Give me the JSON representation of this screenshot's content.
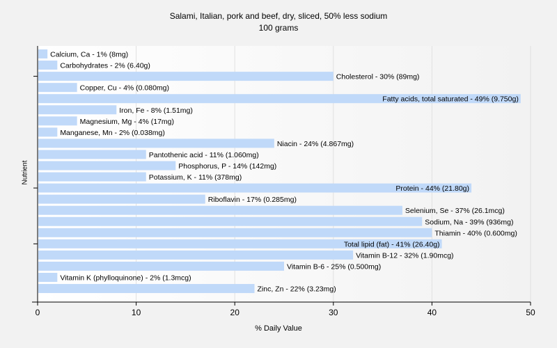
{
  "chart_data": {
    "type": "bar",
    "orientation": "horizontal",
    "title": "Salami, Italian, pork and beef, dry, sliced, 50% less sodium",
    "subtitle": "100 grams",
    "xlabel": "% Daily Value",
    "ylabel": "Nutrient",
    "xlim": [
      0,
      50
    ],
    "xticks": [
      "0",
      "10",
      "20",
      "30",
      "40",
      "50"
    ],
    "grid": true,
    "bar_color": "#c0d9f9",
    "categories": [
      "Calcium, Ca",
      "Carbohydrates",
      "Cholesterol",
      "Copper, Cu",
      "Fatty acids, total saturated",
      "Iron, Fe",
      "Magnesium, Mg",
      "Manganese, Mn",
      "Niacin",
      "Pantothenic acid",
      "Phosphorus, P",
      "Potassium, K",
      "Protein",
      "Riboflavin",
      "Selenium, Se",
      "Sodium, Na",
      "Thiamin",
      "Total lipid (fat)",
      "Vitamin B-12",
      "Vitamin B-6",
      "Vitamin K (phylloquinone)",
      "Zinc, Zn"
    ],
    "values": [
      1,
      2,
      30,
      4,
      49,
      8,
      4,
      2,
      24,
      11,
      14,
      11,
      44,
      17,
      37,
      39,
      40,
      41,
      32,
      25,
      2,
      22
    ],
    "labels": [
      "Calcium, Ca - 1% (8mg)",
      "Carbohydrates - 2% (6.40g)",
      "Cholesterol - 30% (89mg)",
      "Copper, Cu - 4% (0.080mg)",
      "Fatty acids, total saturated - 49% (9.750g)",
      "Iron, Fe - 8% (1.51mg)",
      "Magnesium, Mg - 4% (17mg)",
      "Manganese, Mn - 2% (0.038mg)",
      "Niacin - 24% (4.867mg)",
      "Pantothenic acid - 11% (1.060mg)",
      "Phosphorus, P - 14% (142mg)",
      "Potassium, K - 11% (378mg)",
      "Protein - 44% (21.80g)",
      "Riboflavin - 17% (0.285mg)",
      "Selenium, Se - 37% (26.1mcg)",
      "Sodium, Na - 39% (936mg)",
      "Thiamin - 40% (0.600mg)",
      "Total lipid (fat) - 41% (26.40g)",
      "Vitamin B-12 - 32% (1.90mcg)",
      "Vitamin B-6 - 25% (0.500mg)",
      "Vitamin K (phylloquinone) - 2% (1.3mcg)",
      "Zinc, Zn - 22% (3.23mg)"
    ]
  }
}
